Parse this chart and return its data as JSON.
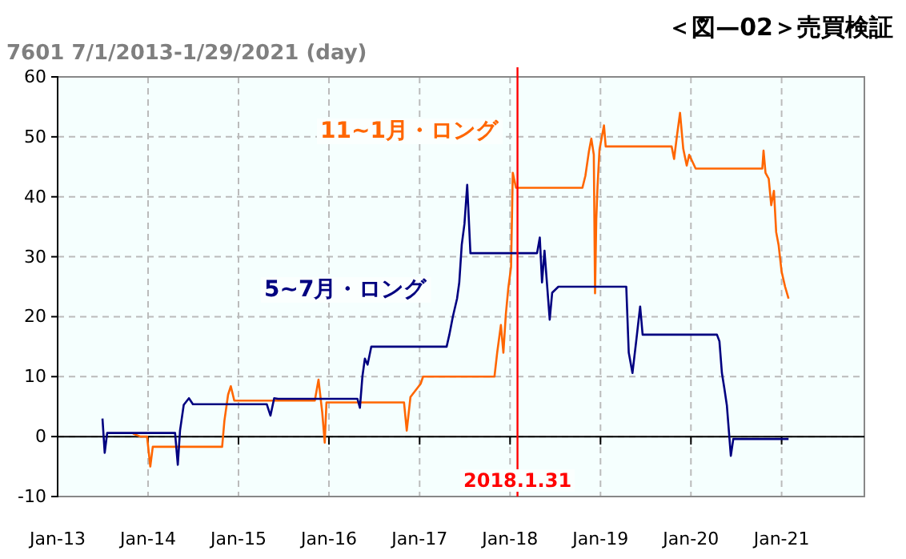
{
  "chart_data": {
    "type": "line",
    "title": "＜図—02＞売買検証",
    "subtitle": "7601 7/1/2013-1/29/2021 (day)",
    "series": [
      {
        "name": "11~1月・ロング",
        "color": "#ff6600",
        "x": [
          "2013-11-01",
          "2013-12-01",
          "2013-12-28",
          "2014-01-10",
          "2014-01-20",
          "2014-10-27",
          "2014-11-05",
          "2014-11-20",
          "2014-12-01",
          "2014-12-15",
          "2015-01-20",
          "2015-11-05",
          "2015-11-20",
          "2015-12-05",
          "2015-12-15",
          "2015-12-22",
          "2016-01-20",
          "2016-10-30",
          "2016-11-10",
          "2016-11-25",
          "2017-01-05",
          "2017-01-15",
          "2017-10-30",
          "2017-11-10",
          "2017-11-25",
          "2017-12-05",
          "2017-12-15",
          "2017-12-25",
          "2018-01-05",
          "2018-01-12",
          "2018-01-25",
          "2018-10-20",
          "2018-11-01",
          "2018-11-15",
          "2018-11-25",
          "2018-12-05",
          "2018-12-10",
          "2018-12-15",
          "2018-12-20",
          "2018-12-28",
          "2019-01-15",
          "2019-01-22",
          "2019-10-15",
          "2019-10-25",
          "2019-11-05",
          "2019-11-18",
          "2019-12-01",
          "2019-12-15",
          "2019-12-25",
          "2020-01-20",
          "2020-10-15",
          "2020-10-20",
          "2020-10-28",
          "2020-11-10",
          "2020-11-20",
          "2020-12-01",
          "2020-12-10",
          "2020-12-20",
          "2021-01-01",
          "2021-01-15",
          "2021-01-29"
        ],
        "values": [
          0.5,
          0,
          0,
          -5,
          -1.7,
          -1.7,
          2.6,
          7,
          8.4,
          6,
          6,
          6,
          9.5,
          4,
          -1,
          5.7,
          5.7,
          5.7,
          1,
          6.6,
          8.8,
          10,
          10,
          14,
          18.6,
          14,
          20.4,
          24.8,
          28.3,
          44,
          41.5,
          41.5,
          43.5,
          47.5,
          49.7,
          47,
          23.9,
          36.3,
          41.7,
          47.9,
          51.9,
          48.4,
          48.4,
          46.3,
          50,
          54,
          48,
          45.2,
          47,
          44.7,
          44.7,
          47.7,
          44,
          43,
          38.6,
          41,
          34.1,
          31.9,
          27.5,
          25,
          23
        ]
      },
      {
        "name": "5~7月・ロング",
        "color": "#000080",
        "x": [
          "2013-07-01",
          "2013-07-10",
          "2013-07-20",
          "2013-08-01",
          "2014-04-20",
          "2014-05-01",
          "2014-05-10",
          "2014-05-25",
          "2014-06-15",
          "2014-07-01",
          "2014-07-20",
          "2015-04-25",
          "2015-05-10",
          "2015-05-25",
          "2015-06-10",
          "2016-04-25",
          "2016-05-05",
          "2016-05-15",
          "2016-05-25",
          "2016-06-05",
          "2016-06-20",
          "2017-04-20",
          "2017-05-01",
          "2017-05-15",
          "2017-06-01",
          "2017-06-10",
          "2017-06-20",
          "2017-07-01",
          "2017-07-12",
          "2017-07-25",
          "2018-04-20",
          "2018-05-01",
          "2018-05-10",
          "2018-05-20",
          "2018-06-10",
          "2018-06-20",
          "2018-07-15",
          "2019-04-15",
          "2019-04-25",
          "2019-05-10",
          "2019-05-25",
          "2019-06-10",
          "2019-06-20",
          "2019-07-20",
          "2020-04-15",
          "2020-04-25",
          "2020-05-05",
          "2020-05-15",
          "2020-05-25",
          "2020-06-10",
          "2020-06-20",
          "2021-01-29"
        ],
        "values": [
          3,
          -2.7,
          0.6,
          0.6,
          0.6,
          -4.7,
          1,
          5.3,
          6.4,
          5.4,
          5.4,
          5.4,
          3.5,
          6.4,
          6.3,
          6.3,
          4.8,
          10,
          13,
          12,
          15,
          15,
          17,
          20,
          23,
          25.7,
          32,
          35.5,
          42,
          30.6,
          30.6,
          33.2,
          25.7,
          31,
          19.5,
          24,
          25,
          25,
          14,
          10.6,
          15.9,
          21.7,
          17,
          17,
          17,
          15.9,
          10.6,
          8,
          5.2,
          -3.2,
          -0.4,
          -0.4
        ]
      }
    ],
    "xlim": [
      "2013-01-01",
      "2021-12-01"
    ],
    "xticks": [
      {
        "value": "2013-01-01",
        "label": "Jan-13"
      },
      {
        "value": "2014-01-01",
        "label": "Jan-14"
      },
      {
        "value": "2015-01-01",
        "label": "Jan-15"
      },
      {
        "value": "2016-01-01",
        "label": "Jan-16"
      },
      {
        "value": "2017-01-01",
        "label": "Jan-17"
      },
      {
        "value": "2018-01-01",
        "label": "Jan-18"
      },
      {
        "value": "2019-01-01",
        "label": "Jan-19"
      },
      {
        "value": "2020-01-01",
        "label": "Jan-20"
      },
      {
        "value": "2021-01-01",
        "label": "Jan-21"
      }
    ],
    "ylim": [
      -10,
      60
    ],
    "yticks": [
      -10,
      0,
      10,
      20,
      30,
      40,
      50,
      60
    ],
    "grid": true,
    "line_style": "solid",
    "ref_lines": [
      {
        "axis": "x",
        "value": "2018-01-31",
        "label": "2018.1.31",
        "color": "#ff0000"
      }
    ]
  }
}
